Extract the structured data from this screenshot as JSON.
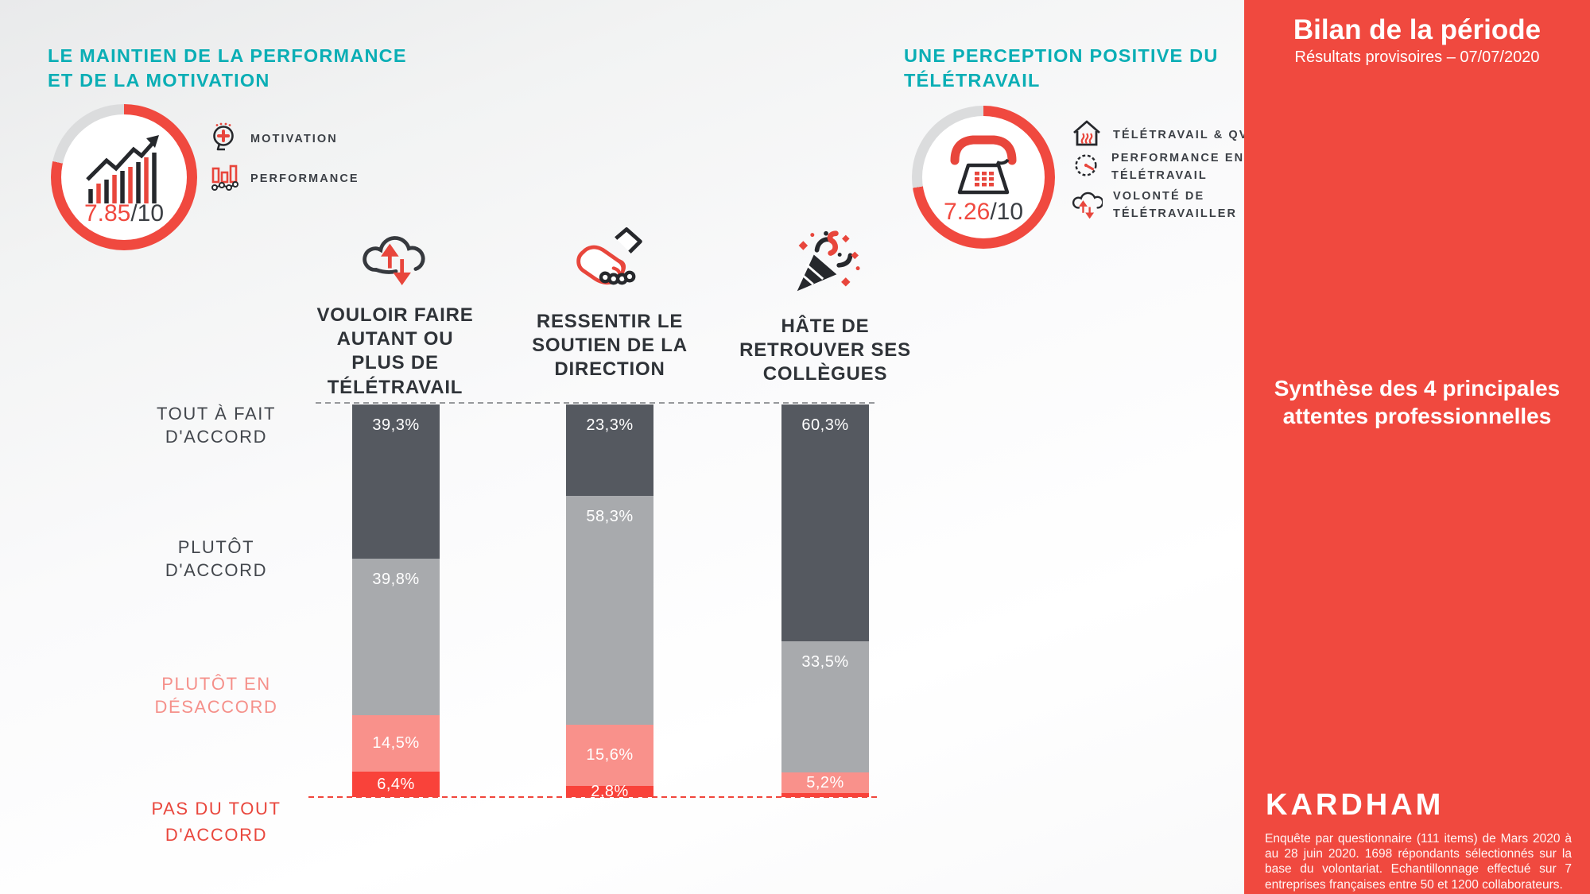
{
  "palette": {
    "teal": "#0aaeb5",
    "accent_red": "#f0493f",
    "bar_dark": "#555960",
    "bar_gray": "#a8aaad",
    "bar_pink": "#f9918b",
    "bar_red": "#f9423a",
    "gauge_rest": "#dbdcdd"
  },
  "left_panel": {
    "title_line1": "LE MAINTIEN DE LA PERFORMANCE",
    "title_line2": "ET DE LA MOTIVATION",
    "score_value": "7.85",
    "score_suffix": "/10",
    "score_pct": 78.5,
    "legend": [
      {
        "label": "MOTIVATION"
      },
      {
        "label": "PERFORMANCE"
      }
    ]
  },
  "right_panel": {
    "title_line1": "UNE PERCEPTION POSITIVE DU",
    "title_line2": "TÉLÉTRAVAIL",
    "score_value": "7.26",
    "score_suffix": "/10",
    "score_pct": 72.6,
    "legend": [
      {
        "label": "TÉLÉTRAVAIL & QVT"
      },
      {
        "label": "PERFORMANCE EN\nTÉLÉTRAVAIL"
      },
      {
        "label": "VOLONTÉ DE\nTÉLÉTRAVAILLER"
      }
    ]
  },
  "chart_data": {
    "type": "bar",
    "stacked": true,
    "unit": "%",
    "ylim": [
      0,
      100
    ],
    "legend_position": "left",
    "grid": false,
    "categories": [
      "VOULOIR FAIRE AUTANT OU PLUS DE TÉLÉTRAVAIL",
      "RESSENTIR LE SOUTIEN DE LA DIRECTION",
      "HÂTE DE RETROUVER SES COLLÈGUES"
    ],
    "categories_display": [
      "VOULOIR FAIRE\nAUTANT OU\nPLUS DE\nTÉLÉTRAVAIL",
      "RESSENTIR LE\nSOUTIEN DE LA\nDIRECTION",
      "HÂTE DE\nRETROUVER SES\nCOLLÈGUES"
    ],
    "series": [
      {
        "name": "TOUT À FAIT D'ACCORD",
        "color": "#555960",
        "values": [
          39.3,
          23.3,
          60.3
        ]
      },
      {
        "name": "PLUTÔT D'ACCORD",
        "color": "#a8aaad",
        "values": [
          39.8,
          58.3,
          33.5
        ]
      },
      {
        "name": "PLUTÔT EN DÉSACCORD",
        "color": "#f9918b",
        "values": [
          14.5,
          15.6,
          5.2
        ]
      },
      {
        "name": "PAS DU TOUT D'ACCORD",
        "color": "#f9423a",
        "values": [
          6.4,
          2.8,
          1.0
        ]
      }
    ],
    "value_labels": [
      [
        "39,3%",
        "23,3%",
        "60,3%"
      ],
      [
        "39,8%",
        "58,3%",
        "33,5%"
      ],
      [
        "14,5%",
        "15,6%",
        "5,2%"
      ],
      [
        "6,4%",
        "2,8%",
        ""
      ]
    ],
    "row_labels": [
      {
        "text": "TOUT À FAIT\nD'ACCORD",
        "color": "#43474d"
      },
      {
        "text": "PLUTÔT\nD'ACCORD",
        "color": "#43474d"
      },
      {
        "text": "PLUTÔT EN\nDÉSACCORD",
        "color": "#f5908a"
      },
      {
        "text": "PAS DU TOUT\nD'ACCORD",
        "color": "#e9473d"
      }
    ],
    "gauges": [
      {
        "label": "LE MAINTIEN DE LA PERFORMANCE ET DE LA MOTIVATION",
        "value": 7.85,
        "max": 10
      },
      {
        "label": "UNE PERCEPTION POSITIVE DU TÉLÉTRAVAIL",
        "value": 7.26,
        "max": 10
      }
    ]
  },
  "sidebar": {
    "title": "Bilan de la période",
    "subtitle": "Résultats provisoires – 07/07/2020",
    "synthesis": "Synthèse des 4 principales\nattentes professionnelles",
    "logo": "KARDHAM",
    "footnote": "Enquête par questionnaire (111 items) de Mars 2020 à au 28 juin 2020. 1698 répondants sélectionnés sur la base du volontariat. Echantillonnage effectué sur 7 entreprises françaises entre 50 et 1200 collaborateurs."
  }
}
